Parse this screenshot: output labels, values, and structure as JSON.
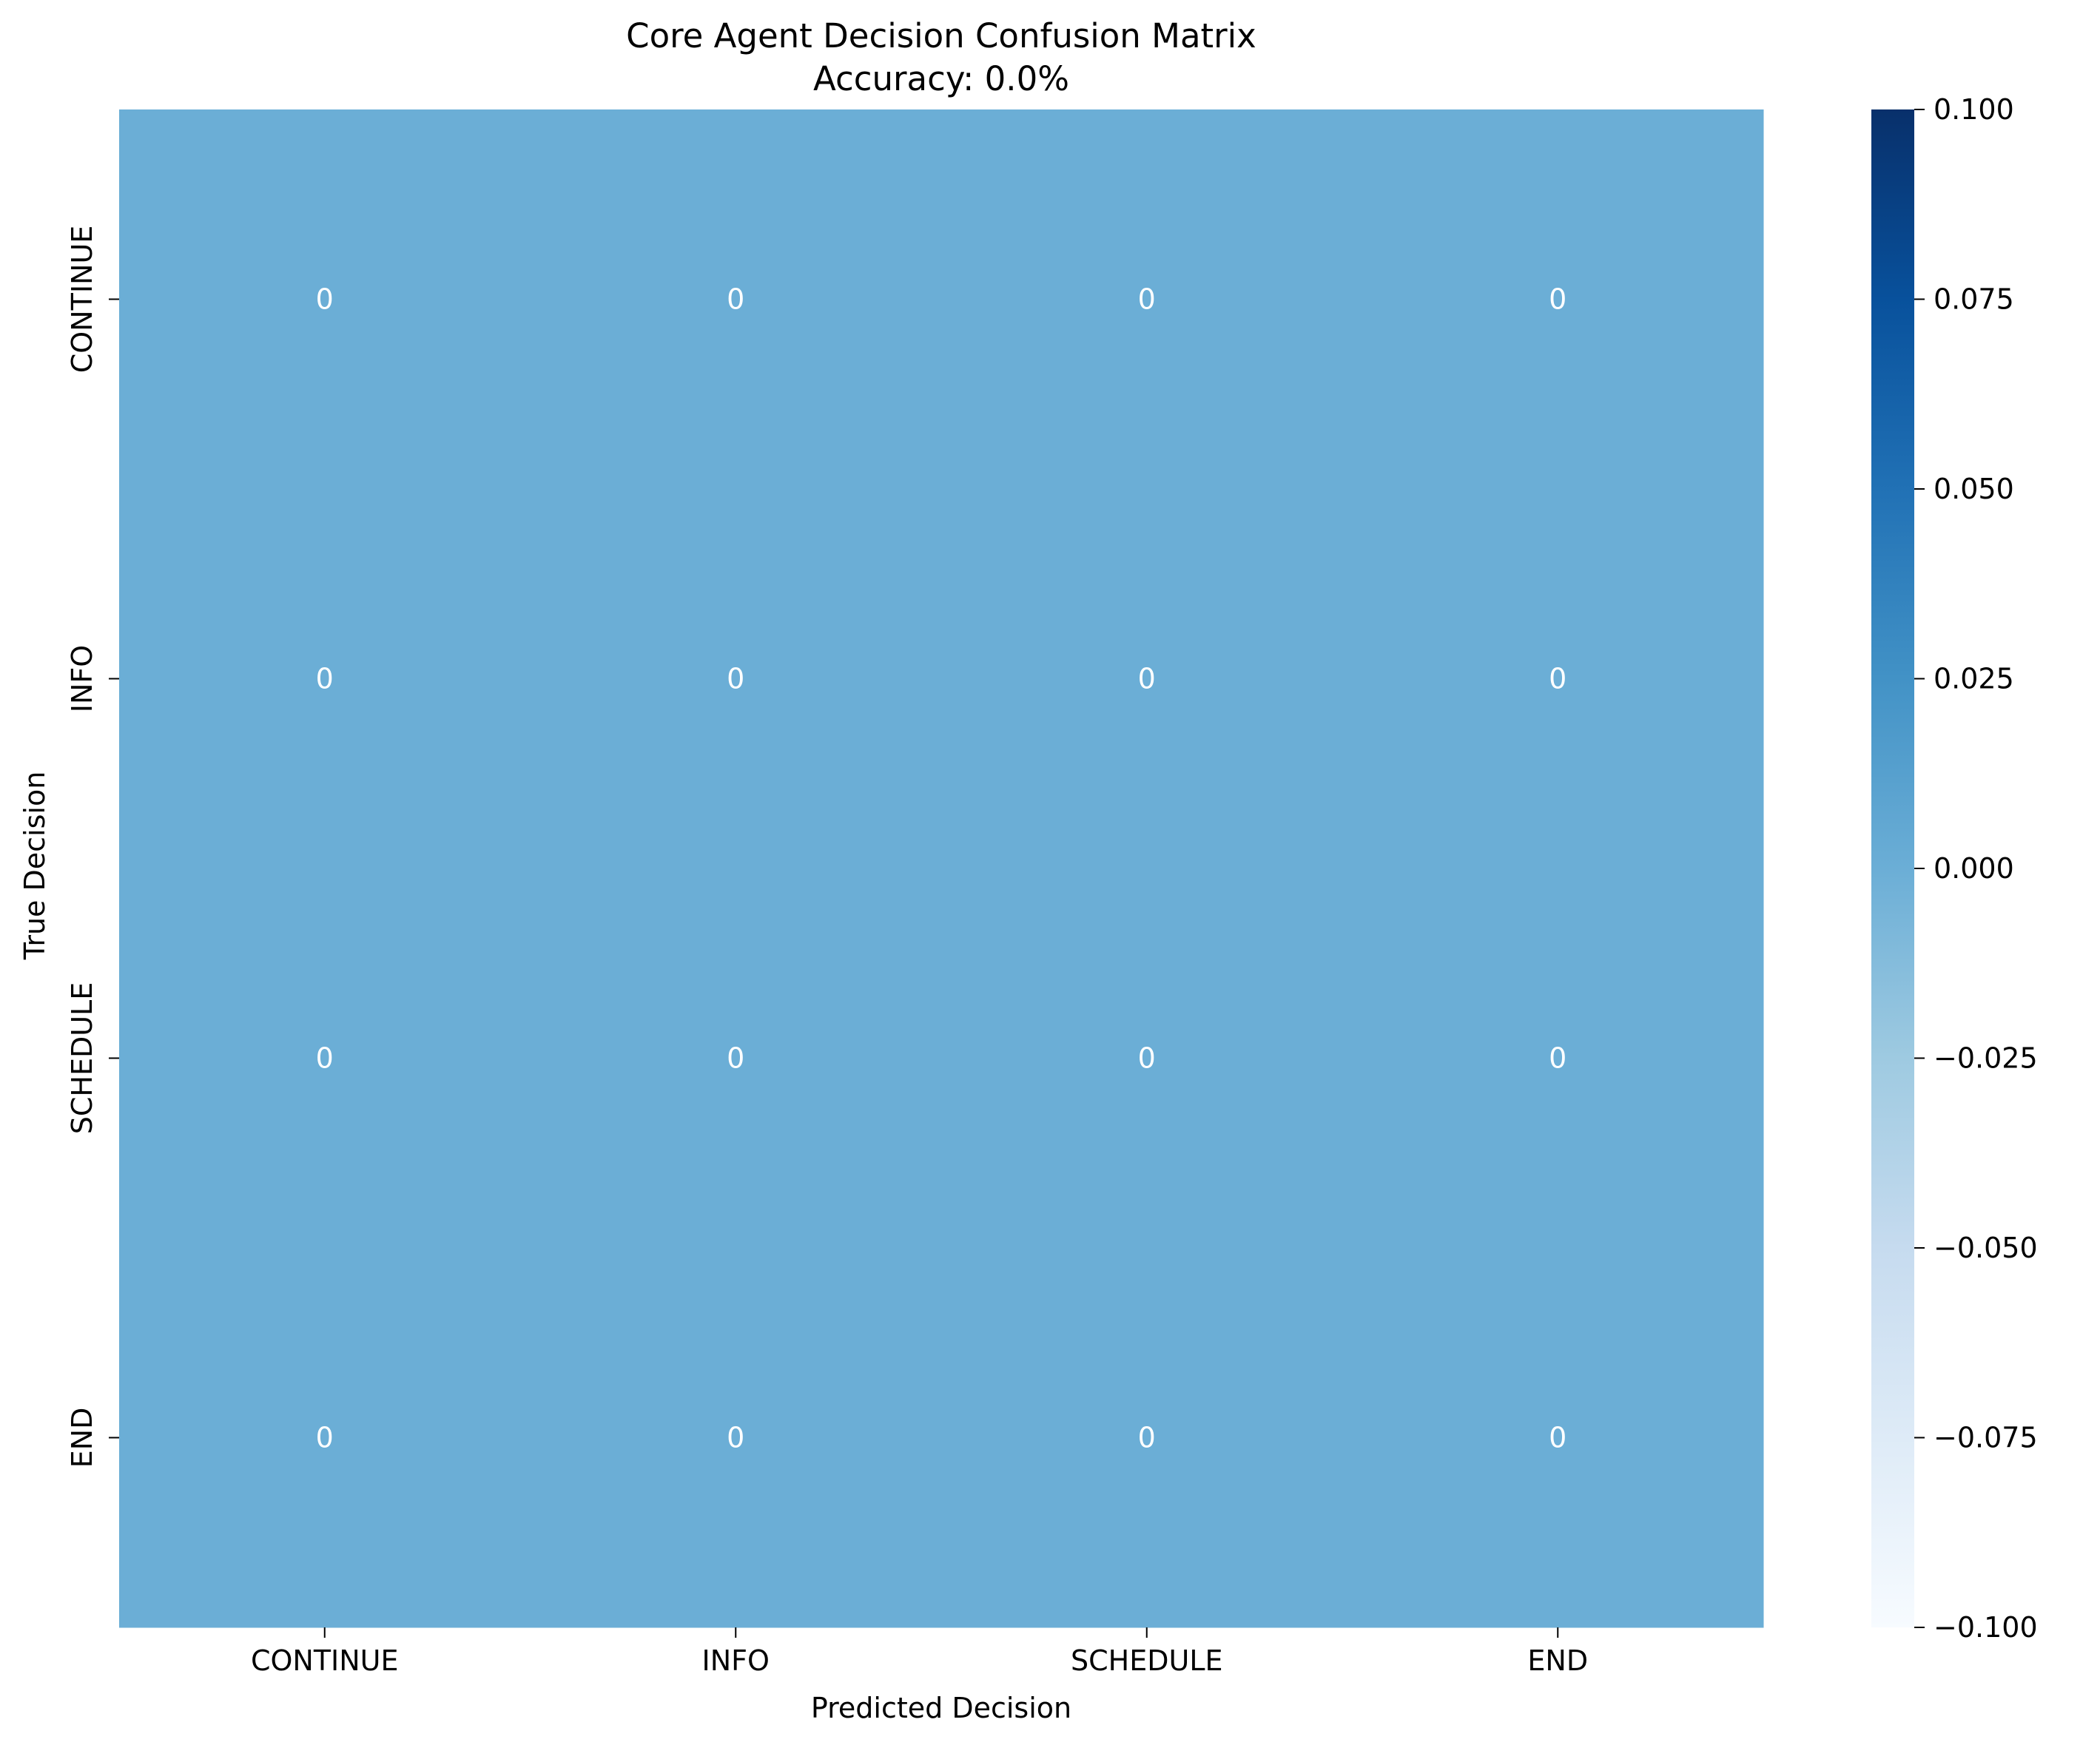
{
  "chart_data": {
    "type": "heatmap",
    "title": "Core Agent Decision Confusion Matrix",
    "subtitle": "Accuracy: 0.0%",
    "xlabel": "Predicted Decision",
    "ylabel": "True Decision",
    "x_categories": [
      "CONTINUE",
      "INFO",
      "SCHEDULE",
      "END"
    ],
    "y_categories": [
      "CONTINUE",
      "INFO",
      "SCHEDULE",
      "END"
    ],
    "values": [
      [
        0,
        0,
        0,
        0
      ],
      [
        0,
        0,
        0,
        0
      ],
      [
        0,
        0,
        0,
        0
      ],
      [
        0,
        0,
        0,
        0
      ]
    ],
    "cell_labels": [
      [
        "0",
        "0",
        "0",
        "0"
      ],
      [
        "0",
        "0",
        "0",
        "0"
      ],
      [
        "0",
        "0",
        "0",
        "0"
      ],
      [
        "0",
        "0",
        "0",
        "0"
      ]
    ],
    "colormap": "Blues",
    "cell_color": "#6baed6",
    "annotation_color": "#ffffff",
    "colorbar": {
      "range": [
        -0.1,
        0.1
      ],
      "ticks": [
        0.1,
        0.075,
        0.05,
        0.025,
        0.0,
        -0.025,
        -0.05,
        -0.075,
        -0.1
      ],
      "tick_labels": [
        "0.100",
        "0.075",
        "0.050",
        "0.025",
        "0.000",
        "−0.025",
        "−0.050",
        "−0.075",
        "−0.100"
      ],
      "colors": [
        "#f7fbff",
        "#deebf7",
        "#c6dbef",
        "#9ecae1",
        "#6baed6",
        "#4292c6",
        "#2171b5",
        "#08519c",
        "#08306b"
      ]
    }
  }
}
